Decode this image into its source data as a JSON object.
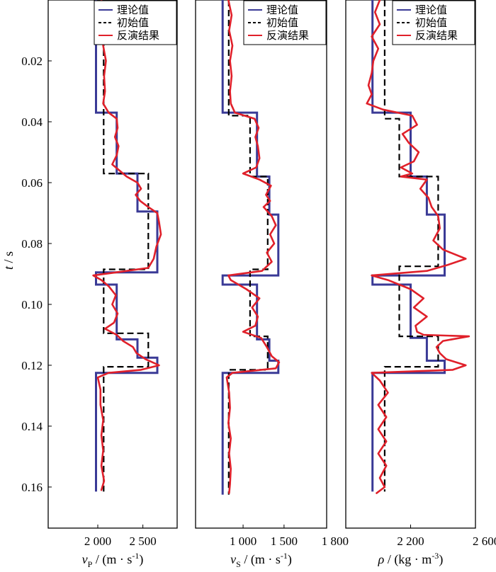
{
  "y_axis": {
    "label_var": "t",
    "label_unit": " / s",
    "ticks": [
      {
        "value": 0.02,
        "label": "0.02"
      },
      {
        "value": 0.04,
        "label": "0.04"
      },
      {
        "value": 0.06,
        "label": "0.06"
      },
      {
        "value": 0.08,
        "label": "0.08"
      },
      {
        "value": 0.1,
        "label": "0.10"
      },
      {
        "value": 0.12,
        "label": "0.12"
      },
      {
        "value": 0.14,
        "label": "0.14"
      },
      {
        "value": 0.16,
        "label": "0.16"
      }
    ]
  },
  "legend": {
    "theory": "理论值",
    "initial": "初始值",
    "inversion": "反演结果"
  },
  "colors": {
    "theory": "#3a3a96",
    "initial": "#000000",
    "inversion": "#e0202a",
    "frame": "#000000"
  },
  "chart_data": [
    {
      "type": "line",
      "name": "vp",
      "xlabel_var": "v",
      "xlabel_sub": "P",
      "xlabel_unit": " / (m · s",
      "xlabel_sup": "-1",
      "xlabel_end": ")",
      "xlim": [
        1450,
        2880
      ],
      "ylim": [
        0.0,
        0.1735
      ],
      "xticks": [
        {
          "value": 2000,
          "label": "2 000"
        },
        {
          "value": 2500,
          "label": "2 500"
        }
      ],
      "theory": [
        [
          0,
          1980
        ],
        [
          0.037,
          1980
        ],
        [
          0.037,
          2210
        ],
        [
          0.057,
          2210
        ],
        [
          0.057,
          2440
        ],
        [
          0.0695,
          2440
        ],
        [
          0.0695,
          2660
        ],
        [
          0.0895,
          2660
        ],
        [
          0.0895,
          1980
        ],
        [
          0.0935,
          1980
        ],
        [
          0.0935,
          2210
        ],
        [
          0.1115,
          2210
        ],
        [
          0.1115,
          2440
        ],
        [
          0.1175,
          2440
        ],
        [
          0.1175,
          2660
        ],
        [
          0.1225,
          2660
        ],
        [
          0.1225,
          1980
        ],
        [
          0.1615,
          1980
        ]
      ],
      "initial": [
        [
          0,
          2065
        ],
        [
          0.057,
          2065
        ],
        [
          0.057,
          2560
        ],
        [
          0.0885,
          2560
        ],
        [
          0.0885,
          2065
        ],
        [
          0.1095,
          2065
        ],
        [
          0.1095,
          2560
        ],
        [
          0.1205,
          2560
        ],
        [
          0.1205,
          2065
        ],
        [
          0.1615,
          2065
        ]
      ],
      "inversion": [
        [
          0,
          2040
        ],
        [
          0.005,
          2060
        ],
        [
          0.01,
          2080
        ],
        [
          0.015,
          2060
        ],
        [
          0.02,
          2090
        ],
        [
          0.025,
          2070
        ],
        [
          0.03,
          2080
        ],
        [
          0.034,
          2060
        ],
        [
          0.037,
          2120
        ],
        [
          0.039,
          2210
        ],
        [
          0.042,
          2220
        ],
        [
          0.045,
          2190
        ],
        [
          0.048,
          2230
        ],
        [
          0.051,
          2210
        ],
        [
          0.054,
          2160
        ],
        [
          0.056,
          2240
        ],
        [
          0.058,
          2320
        ],
        [
          0.06,
          2440
        ],
        [
          0.062,
          2480
        ],
        [
          0.064,
          2420
        ],
        [
          0.066,
          2470
        ],
        [
          0.068,
          2560
        ],
        [
          0.07,
          2660
        ],
        [
          0.073,
          2680
        ],
        [
          0.077,
          2700
        ],
        [
          0.081,
          2650
        ],
        [
          0.085,
          2620
        ],
        [
          0.088,
          2560
        ],
        [
          0.0895,
          2200
        ],
        [
          0.0905,
          1950
        ],
        [
          0.092,
          2040
        ],
        [
          0.094,
          2120
        ],
        [
          0.097,
          2200
        ],
        [
          0.1,
          2160
        ],
        [
          0.103,
          2220
        ],
        [
          0.106,
          2180
        ],
        [
          0.108,
          2080
        ],
        [
          0.11,
          2210
        ],
        [
          0.112,
          2280
        ],
        [
          0.114,
          2390
        ],
        [
          0.116,
          2430
        ],
        [
          0.118,
          2530
        ],
        [
          0.12,
          2680
        ],
        [
          0.1215,
          2480
        ],
        [
          0.1225,
          2120
        ],
        [
          0.124,
          2000
        ],
        [
          0.128,
          2030
        ],
        [
          0.133,
          2030
        ],
        [
          0.138,
          2060
        ],
        [
          0.143,
          2040
        ],
        [
          0.148,
          2060
        ],
        [
          0.153,
          2040
        ],
        [
          0.158,
          2070
        ],
        [
          0.161,
          2040
        ]
      ]
    },
    {
      "type": "line",
      "name": "vs",
      "xlabel_var": "v",
      "xlabel_sub": "S",
      "xlabel_unit": " / (m · s",
      "xlabel_sup": "-1",
      "xlabel_end": ")",
      "xlim": [
        420,
        2020
      ],
      "ylim": [
        0.0,
        0.1735
      ],
      "xticks": [
        {
          "value": 1000,
          "label": "1 000"
        },
        {
          "value": 1500,
          "label": "1 500"
        }
      ],
      "theory": [
        [
          0,
          750
        ],
        [
          0.037,
          750
        ],
        [
          0.037,
          1170
        ],
        [
          0.058,
          1170
        ],
        [
          0.058,
          1320
        ],
        [
          0.0705,
          1320
        ],
        [
          0.0705,
          1430
        ],
        [
          0.0905,
          1430
        ],
        [
          0.0905,
          750
        ],
        [
          0.0935,
          750
        ],
        [
          0.0935,
          1170
        ],
        [
          0.1115,
          1170
        ],
        [
          0.1115,
          1320
        ],
        [
          0.1185,
          1320
        ],
        [
          0.1185,
          1430
        ],
        [
          0.1225,
          1430
        ],
        [
          0.1225,
          750
        ],
        [
          0.1625,
          750
        ]
      ],
      "initial": [
        [
          0,
          825
        ],
        [
          0.038,
          825
        ],
        [
          0.038,
          1085
        ],
        [
          0.058,
          1085
        ],
        [
          0.058,
          1300
        ],
        [
          0.0885,
          1300
        ],
        [
          0.0885,
          1085
        ],
        [
          0.1105,
          1085
        ],
        [
          0.1105,
          1300
        ],
        [
          0.1215,
          1300
        ],
        [
          0.1215,
          825
        ],
        [
          0.1625,
          825
        ]
      ],
      "inversion": [
        [
          0,
          820
        ],
        [
          0.005,
          860
        ],
        [
          0.01,
          830
        ],
        [
          0.015,
          870
        ],
        [
          0.02,
          840
        ],
        [
          0.025,
          860
        ],
        [
          0.03,
          840
        ],
        [
          0.034,
          850
        ],
        [
          0.037,
          900
        ],
        [
          0.039,
          1140
        ],
        [
          0.042,
          1190
        ],
        [
          0.045,
          1150
        ],
        [
          0.048,
          1180
        ],
        [
          0.052,
          1200
        ],
        [
          0.055,
          1160
        ],
        [
          0.057,
          1000
        ],
        [
          0.059,
          1200
        ],
        [
          0.061,
          1340
        ],
        [
          0.064,
          1280
        ],
        [
          0.066,
          1330
        ],
        [
          0.068,
          1250
        ],
        [
          0.071,
          1350
        ],
        [
          0.074,
          1400
        ],
        [
          0.077,
          1330
        ],
        [
          0.08,
          1380
        ],
        [
          0.083,
          1290
        ],
        [
          0.086,
          1350
        ],
        [
          0.089,
          1230
        ],
        [
          0.0905,
          820
        ],
        [
          0.092,
          850
        ],
        [
          0.095,
          1040
        ],
        [
          0.098,
          1200
        ],
        [
          0.101,
          1110
        ],
        [
          0.104,
          1180
        ],
        [
          0.107,
          1150
        ],
        [
          0.109,
          1000
        ],
        [
          0.111,
          1220
        ],
        [
          0.114,
          1290
        ],
        [
          0.117,
          1350
        ],
        [
          0.119,
          1440
        ],
        [
          0.121,
          1400
        ],
        [
          0.1225,
          870
        ],
        [
          0.124,
          800
        ],
        [
          0.129,
          830
        ],
        [
          0.134,
          840
        ],
        [
          0.139,
          820
        ],
        [
          0.144,
          850
        ],
        [
          0.149,
          830
        ],
        [
          0.154,
          850
        ],
        [
          0.159,
          840
        ],
        [
          0.162,
          830
        ]
      ]
    },
    {
      "type": "line",
      "name": "rho",
      "xlabel_var": "ρ",
      "xlabel_sub": "",
      "xlabel_unit": " / (kg · m",
      "xlabel_sup": "-3",
      "xlabel_end": ")",
      "xlim": [
        1800,
        2600
      ],
      "ylim": [
        0.0,
        0.1735
      ],
      "xticks": [
        {
          "value": 1800,
          "label": "1 800"
        },
        {
          "value": 2200,
          "label": "2 200"
        },
        {
          "value": 2600,
          "label": "2 600"
        }
      ],
      "theory": [
        [
          0,
          1965
        ],
        [
          0.037,
          1965
        ],
        [
          0.037,
          2200
        ],
        [
          0.058,
          2200
        ],
        [
          0.058,
          2300
        ],
        [
          0.0705,
          2300
        ],
        [
          0.0705,
          2410
        ],
        [
          0.0905,
          2410
        ],
        [
          0.0905,
          1965
        ],
        [
          0.0935,
          1965
        ],
        [
          0.0935,
          2200
        ],
        [
          0.111,
          2200
        ],
        [
          0.111,
          2300
        ],
        [
          0.1185,
          2300
        ],
        [
          0.1185,
          2410
        ],
        [
          0.1225,
          2410
        ],
        [
          0.1225,
          1965
        ],
        [
          0.1615,
          1965
        ]
      ],
      "initial": [
        [
          0,
          2040
        ],
        [
          0.039,
          2040
        ],
        [
          0.039,
          2130
        ],
        [
          0.058,
          2130
        ],
        [
          0.058,
          2370
        ],
        [
          0.0875,
          2370
        ],
        [
          0.0875,
          2130
        ],
        [
          0.1105,
          2130
        ],
        [
          0.1105,
          2370
        ],
        [
          0.1205,
          2370
        ],
        [
          0.1205,
          2040
        ],
        [
          0.1615,
          2040
        ]
      ],
      "inversion": [
        [
          0,
          2010
        ],
        [
          0.004,
          1980
        ],
        [
          0.008,
          2010
        ],
        [
          0.012,
          1960
        ],
        [
          0.016,
          2000
        ],
        [
          0.02,
          1970
        ],
        [
          0.024,
          1960
        ],
        [
          0.028,
          1940
        ],
        [
          0.031,
          1960
        ],
        [
          0.034,
          1930
        ],
        [
          0.036,
          2030
        ],
        [
          0.038,
          2210
        ],
        [
          0.041,
          2240
        ],
        [
          0.044,
          2150
        ],
        [
          0.047,
          2190
        ],
        [
          0.05,
          2250
        ],
        [
          0.053,
          2220
        ],
        [
          0.055,
          2140
        ],
        [
          0.057,
          2210
        ],
        [
          0.058,
          2140
        ],
        [
          0.059,
          2300
        ],
        [
          0.062,
          2260
        ],
        [
          0.065,
          2310
        ],
        [
          0.068,
          2330
        ],
        [
          0.071,
          2370
        ],
        [
          0.075,
          2380
        ],
        [
          0.079,
          2340
        ],
        [
          0.082,
          2400
        ],
        [
          0.085,
          2540
        ],
        [
          0.087,
          2430
        ],
        [
          0.089,
          2300
        ],
        [
          0.0905,
          1960
        ],
        [
          0.092,
          2060
        ],
        [
          0.095,
          2200
        ],
        [
          0.098,
          2280
        ],
        [
          0.101,
          2220
        ],
        [
          0.104,
          2300
        ],
        [
          0.107,
          2230
        ],
        [
          0.109,
          2240
        ],
        [
          0.11,
          2280
        ],
        [
          0.1105,
          2560
        ],
        [
          0.112,
          2400
        ],
        [
          0.114,
          2360
        ],
        [
          0.116,
          2380
        ],
        [
          0.118,
          2420
        ],
        [
          0.12,
          2540
        ],
        [
          0.1215,
          2460
        ],
        [
          0.1225,
          1960
        ],
        [
          0.125,
          2010
        ],
        [
          0.129,
          2060
        ],
        [
          0.133,
          2000
        ],
        [
          0.137,
          2050
        ],
        [
          0.141,
          2000
        ],
        [
          0.145,
          2050
        ],
        [
          0.149,
          2000
        ],
        [
          0.153,
          2050
        ],
        [
          0.157,
          2010
        ],
        [
          0.16,
          2040
        ],
        [
          0.162,
          1990
        ]
      ]
    }
  ]
}
